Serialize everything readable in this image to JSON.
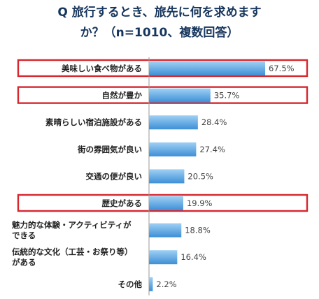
{
  "title_line1": "Q 旅行するとき、旅先に何を求めます",
  "title_line2": "か？（n=1010、複数回答）",
  "colors": {
    "title": "#17365d",
    "bar_top": "#9fd0f4",
    "bar_bottom": "#3d8fd6",
    "highlight_box": "#d7262e",
    "axis": "#9a9a9a"
  },
  "chart_data": {
    "type": "bar",
    "orientation": "horizontal",
    "categories": [
      [
        "美味しい食べ物がある"
      ],
      [
        "自然が豊か"
      ],
      [
        "素晴らしい宿泊施設がある"
      ],
      [
        "街の雰囲気が良い"
      ],
      [
        "交通の便が良い"
      ],
      [
        "歴史がある"
      ],
      [
        "魅力的な体験・アクティビティが",
        "できる"
      ],
      [
        "伝統的な文化（工芸・お祭り等）",
        "がある"
      ],
      [
        "その他"
      ]
    ],
    "values": [
      67.5,
      35.7,
      28.4,
      27.4,
      20.5,
      19.9,
      18.8,
      16.4,
      2.2
    ],
    "value_labels": [
      "67.5%",
      "35.7%",
      "28.4%",
      "27.4%",
      "20.5%",
      "19.9%",
      "18.8%",
      "16.4%",
      "2.2%"
    ],
    "highlighted": [
      true,
      true,
      false,
      false,
      false,
      true,
      false,
      false,
      false
    ],
    "xlim": [
      0,
      70
    ],
    "grid": false,
    "legend": "none"
  }
}
